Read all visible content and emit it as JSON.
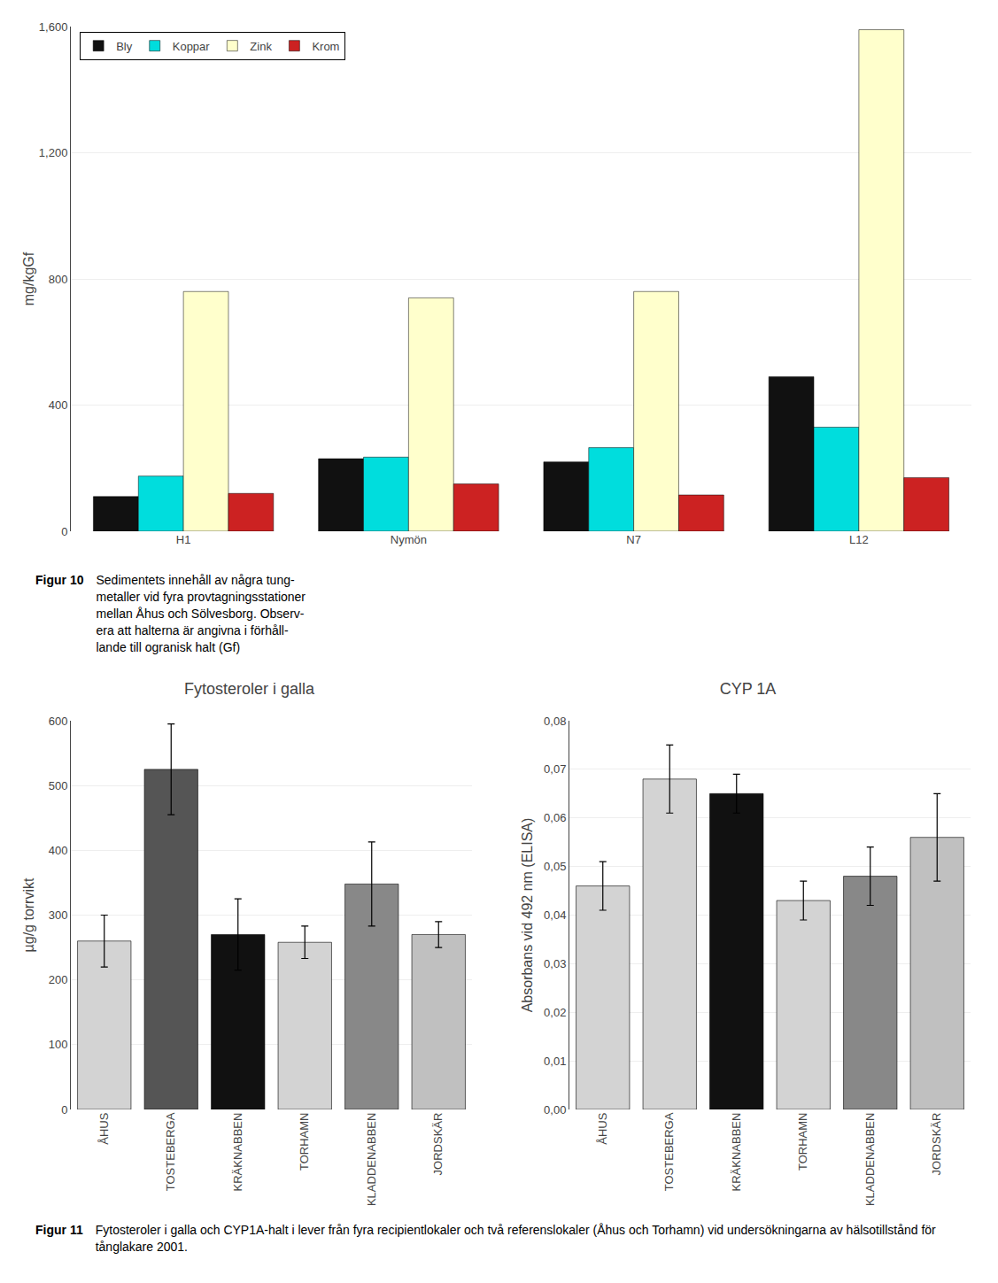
{
  "chart_data": [
    {
      "type": "bar",
      "categories": [
        "H1",
        "Nymön",
        "N7",
        "L12"
      ],
      "series": [
        {
          "name": "Bly",
          "color": "#111111",
          "values": [
            110,
            230,
            220,
            490
          ]
        },
        {
          "name": "Koppar",
          "color": "#00dddd",
          "values": [
            175,
            235,
            265,
            330
          ]
        },
        {
          "name": "Zink",
          "color": "#ffffcc",
          "values": [
            760,
            740,
            760,
            1590
          ]
        },
        {
          "name": "Krom",
          "color": "#cc2222",
          "values": [
            120,
            150,
            115,
            170
          ]
        }
      ],
      "ylabel": "mg/kgGf",
      "ylim": [
        0,
        1600
      ],
      "yticks": [
        0,
        400,
        800,
        {
          "value": 1200,
          "label": "1,200"
        },
        {
          "value": 1600,
          "label": "1,600"
        }
      ],
      "grid": true,
      "legend": "upper left",
      "annotations": [
        "Figur 10",
        "Sedimentets innehåll av några tung-\nmetaller vid fyra provtagningsstationer\nmellan Åhus och Sölvesborg. Observ-\nera att halterna är angivna i förhåll-\nlande till ogranisk halt (Gf)"
      ]
    },
    {
      "type": "bar",
      "title": "Fytosteroler i galla",
      "categories": [
        "ÅHUS",
        "TOSTEBERGA",
        "KRÄKNABBEN",
        "TORHAMN",
        "KLADDENABBEN",
        "JORDSKÄR"
      ],
      "values": [
        260,
        525,
        270,
        258,
        348,
        270
      ],
      "errors": [
        40,
        70,
        55,
        25,
        65,
        20
      ],
      "colors": [
        "#d3d3d3",
        "#555555",
        "#111111",
        "#d3d3d3",
        "#888888",
        "#c0c0c0"
      ],
      "ylabel": "µg/g torrvikt",
      "ylim": [
        0,
        600
      ],
      "yticks": [
        0,
        100,
        200,
        300,
        400,
        500,
        600
      ],
      "grid": true
    },
    {
      "type": "bar",
      "title": "CYP 1A",
      "categories": [
        "ÅHUS",
        "TOSTEBERGA",
        "KRÄKNABBEN",
        "TORHAMN",
        "KLADDENABBEN",
        "JORDSKÄR"
      ],
      "values": [
        0.046,
        0.068,
        0.065,
        0.043,
        0.048,
        0.056
      ],
      "errors": [
        0.005,
        0.007,
        0.004,
        0.004,
        0.006,
        0.009
      ],
      "colors": [
        "#d3d3d3",
        "#d3d3d3",
        "#111111",
        "#d3d3d3",
        "#888888",
        "#c0c0c0"
      ],
      "ylabel": "Absorbans vid 492 nm (ELISA)",
      "ylim": [
        0,
        0.08
      ],
      "yticks": [
        {
          "value": 0,
          "label": "0,00"
        },
        {
          "value": 0.01,
          "label": "0,01"
        },
        {
          "value": 0.02,
          "label": "0,02"
        },
        {
          "value": 0.03,
          "label": "0,03"
        },
        {
          "value": 0.04,
          "label": "0,04"
        },
        {
          "value": 0.05,
          "label": "0,05"
        },
        {
          "value": 0.06,
          "label": "0,06"
        },
        {
          "value": 0.07,
          "label": "0,07"
        },
        {
          "value": 0.08,
          "label": "0,08"
        }
      ],
      "grid": true,
      "annotations": [
        "Figur 11",
        "Fytosteroler i galla och CYP1A-halt i lever från fyra recipientlokaler och två referenslokaler (Åhus och Torhamn) vid undersökningarna av hälsotillstånd för tånglakare 2001."
      ]
    }
  ]
}
